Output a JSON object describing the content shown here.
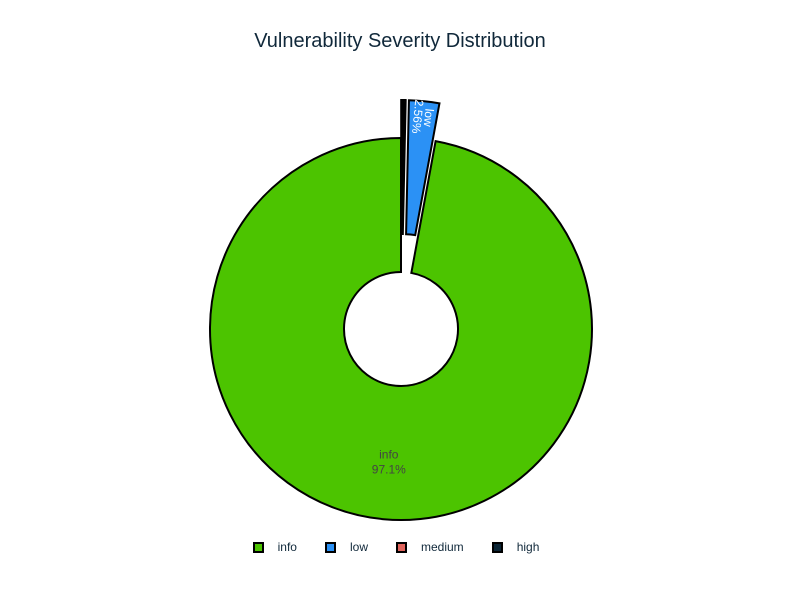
{
  "chart_data": {
    "type": "pie",
    "title": "Vulnerability Severity Distribution",
    "hole": true,
    "categories": [
      "info",
      "low",
      "medium",
      "high"
    ],
    "percent_labels": [
      "97.1%",
      "2.56%",
      "",
      ""
    ],
    "values": [
      97.1,
      2.56,
      0.17,
      0.17
    ],
    "pulled": [
      "low",
      "medium",
      "high"
    ],
    "colors": [
      "#4cc400",
      "#2b91f5",
      "#e0645c",
      "#0b2535"
    ],
    "slice_text_colors": [
      "#444444",
      "#ffffff",
      "#ffffff",
      "#ffffff"
    ],
    "legend_placement": "bottom-center"
  }
}
